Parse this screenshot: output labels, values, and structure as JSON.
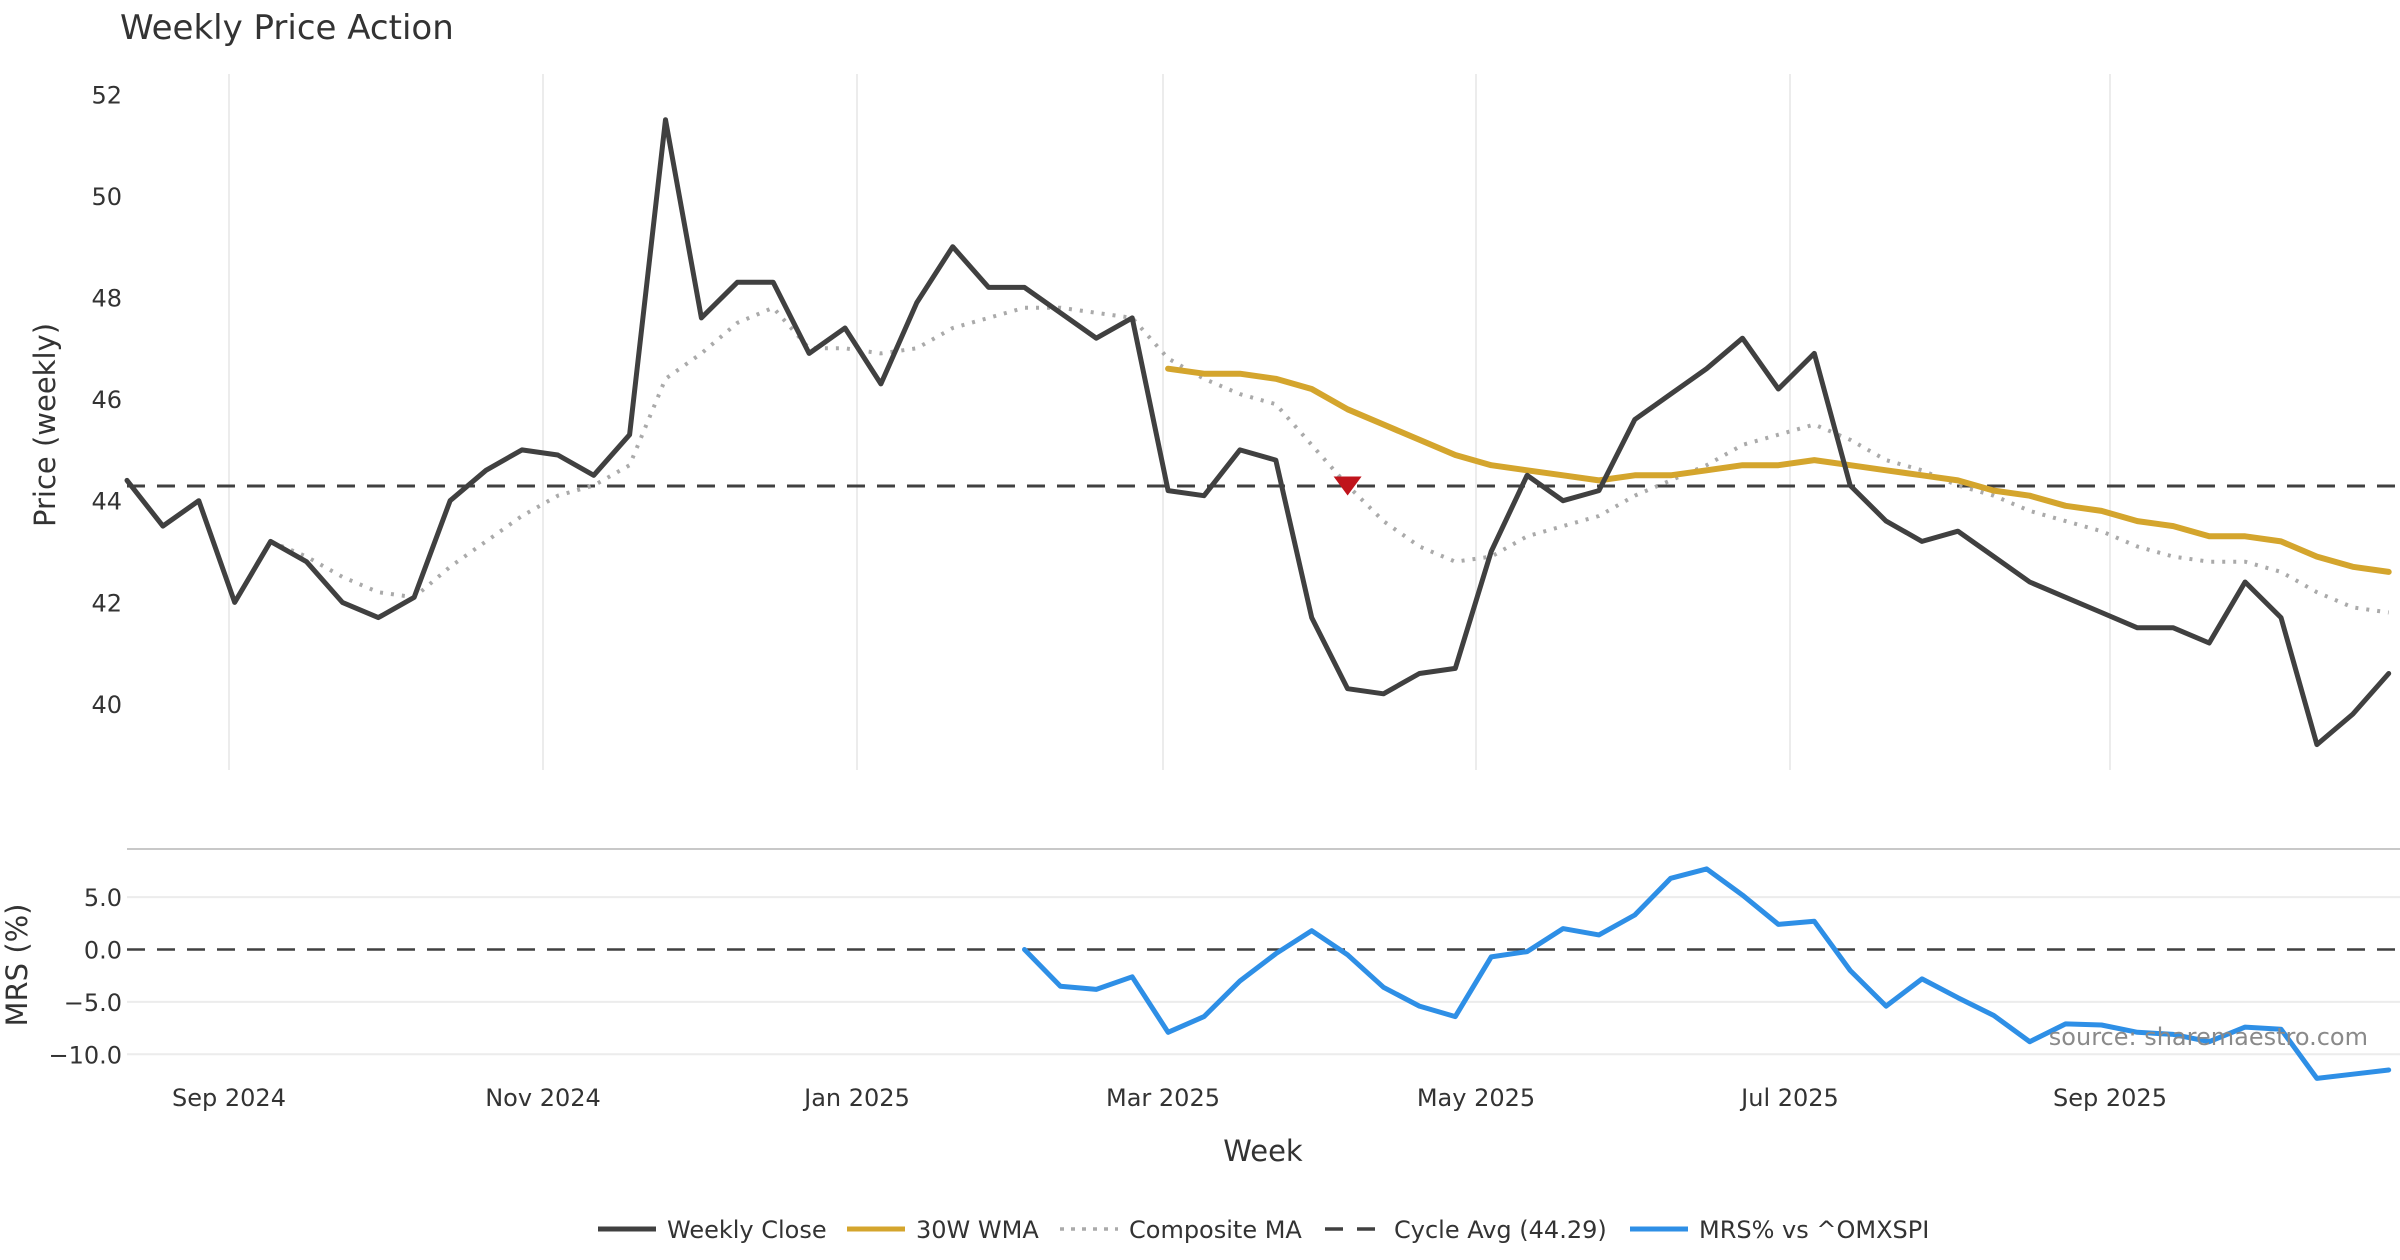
{
  "chart_data": {
    "type": "line",
    "title": "Weekly Price Action",
    "xlabel": "Week",
    "x_tick_labels": [
      "Sep 2024",
      "Nov 2024",
      "Jan 2025",
      "Mar 2025",
      "May 2025",
      "Jul 2025",
      "Sep 2025"
    ],
    "source": "source: sharemaestro.com",
    "price_panel": {
      "ylabel": "Price (weekly)",
      "ylim": [
        38.7,
        52.4
      ],
      "yticks": [
        40,
        42,
        44,
        46,
        48,
        50,
        52
      ],
      "series": [
        {
          "name": "Weekly Close",
          "color": "#404040",
          "style": "solid",
          "start_week": 0,
          "values": [
            44.4,
            43.5,
            44.0,
            42.0,
            43.2,
            42.8,
            42.0,
            41.7,
            42.1,
            44.0,
            44.6,
            45.0,
            44.9,
            44.5,
            45.3,
            51.5,
            47.6,
            48.3,
            48.3,
            46.9,
            47.4,
            46.3,
            47.9,
            49.0,
            48.2,
            48.2,
            47.7,
            47.2,
            47.6,
            44.2,
            44.1,
            45.0,
            44.8,
            41.7,
            40.3,
            40.2,
            40.6,
            40.7,
            43.0,
            44.5,
            44.0,
            44.2,
            45.6,
            46.1,
            46.6,
            47.2,
            46.2,
            46.9,
            44.3,
            43.6,
            43.2,
            43.4,
            42.9,
            42.4,
            42.1,
            41.8,
            41.5,
            41.5,
            41.2,
            42.4,
            41.7,
            39.2,
            39.8,
            40.6
          ]
        },
        {
          "name": "30W WMA",
          "color": "#d4a52d",
          "style": "solid",
          "start_week": 29,
          "values": [
            46.6,
            46.5,
            46.5,
            46.4,
            46.2,
            45.8,
            45.5,
            45.2,
            44.9,
            44.7,
            44.6,
            44.5,
            44.4,
            44.5,
            44.5,
            44.6,
            44.7,
            44.7,
            44.8,
            44.7,
            44.6,
            44.5,
            44.4,
            44.2,
            44.1,
            43.9,
            43.8,
            43.6,
            43.5,
            43.3,
            43.3,
            43.2,
            42.9,
            42.7,
            42.6
          ]
        },
        {
          "name": "Composite MA",
          "color": "#aaaaaa",
          "style": "dotted",
          "start_week": 4,
          "values": [
            43.2,
            42.9,
            42.5,
            42.2,
            42.1,
            42.7,
            43.2,
            43.7,
            44.1,
            44.3,
            44.7,
            46.4,
            46.9,
            47.5,
            47.8,
            47.0,
            47.0,
            46.9,
            47.0,
            47.4,
            47.6,
            47.8,
            47.8,
            47.7,
            47.6,
            46.8,
            46.4,
            46.1,
            45.9,
            45.1,
            44.3,
            43.6,
            43.1,
            42.8,
            42.9,
            43.3,
            43.5,
            43.7,
            44.1,
            44.4,
            44.7,
            45.1,
            45.3,
            45.5,
            45.2,
            44.8,
            44.6,
            44.3,
            44.1,
            43.8,
            43.6,
            43.4,
            43.1,
            42.9,
            42.8,
            42.8,
            42.6,
            42.2,
            41.9,
            41.8
          ]
        },
        {
          "name": "Cycle Avg (44.29)",
          "color": "#404040",
          "style": "dashed",
          "value": 44.29
        }
      ],
      "annotations": [
        {
          "type": "marker",
          "shape": "triangle-down",
          "color": "#c0141c",
          "week": 34,
          "value": 44.3
        }
      ]
    },
    "mrs_panel": {
      "ylabel": "MRS (%)",
      "ylim": [
        -11.5,
        9.6
      ],
      "yticks": [
        -10,
        -5,
        0,
        5
      ],
      "ytick_labels": [
        "−10.0",
        "−5.0",
        "0.0",
        "5.0"
      ],
      "zero_line": {
        "value": 0,
        "style": "dashed",
        "color": "#404040"
      },
      "series": [
        {
          "name": "MRS% vs ^OMXSPI",
          "color": "#2e8fe6",
          "style": "solid",
          "start_week": 25,
          "values": [
            0.0,
            -3.5,
            -3.8,
            -2.6,
            -7.9,
            -6.4,
            -3.0,
            -0.4,
            1.8,
            -0.5,
            -3.6,
            -5.4,
            -6.4,
            -0.7,
            -0.2,
            2.0,
            1.4,
            3.3,
            6.8,
            7.7,
            5.2,
            2.4,
            2.7,
            -2.0,
            -5.4,
            -2.8,
            -4.6,
            -6.3,
            -8.8,
            -7.1,
            -7.2,
            -7.9,
            -8.1,
            -8.8,
            -7.4,
            -7.6,
            -12.3,
            -11.9,
            -11.5
          ]
        }
      ]
    },
    "legend": {
      "position": "bottom-center",
      "entries": [
        {
          "label": "Weekly Close",
          "color": "#404040",
          "style": "solid"
        },
        {
          "label": "30W WMA",
          "color": "#d4a52d",
          "style": "solid"
        },
        {
          "label": "Composite MA",
          "color": "#aaaaaa",
          "style": "dotted"
        },
        {
          "label": "Cycle Avg (44.29)",
          "color": "#404040",
          "style": "dashed"
        },
        {
          "label": "MRS% vs ^OMXSPI",
          "color": "#2e8fe6",
          "style": "solid"
        }
      ]
    }
  }
}
